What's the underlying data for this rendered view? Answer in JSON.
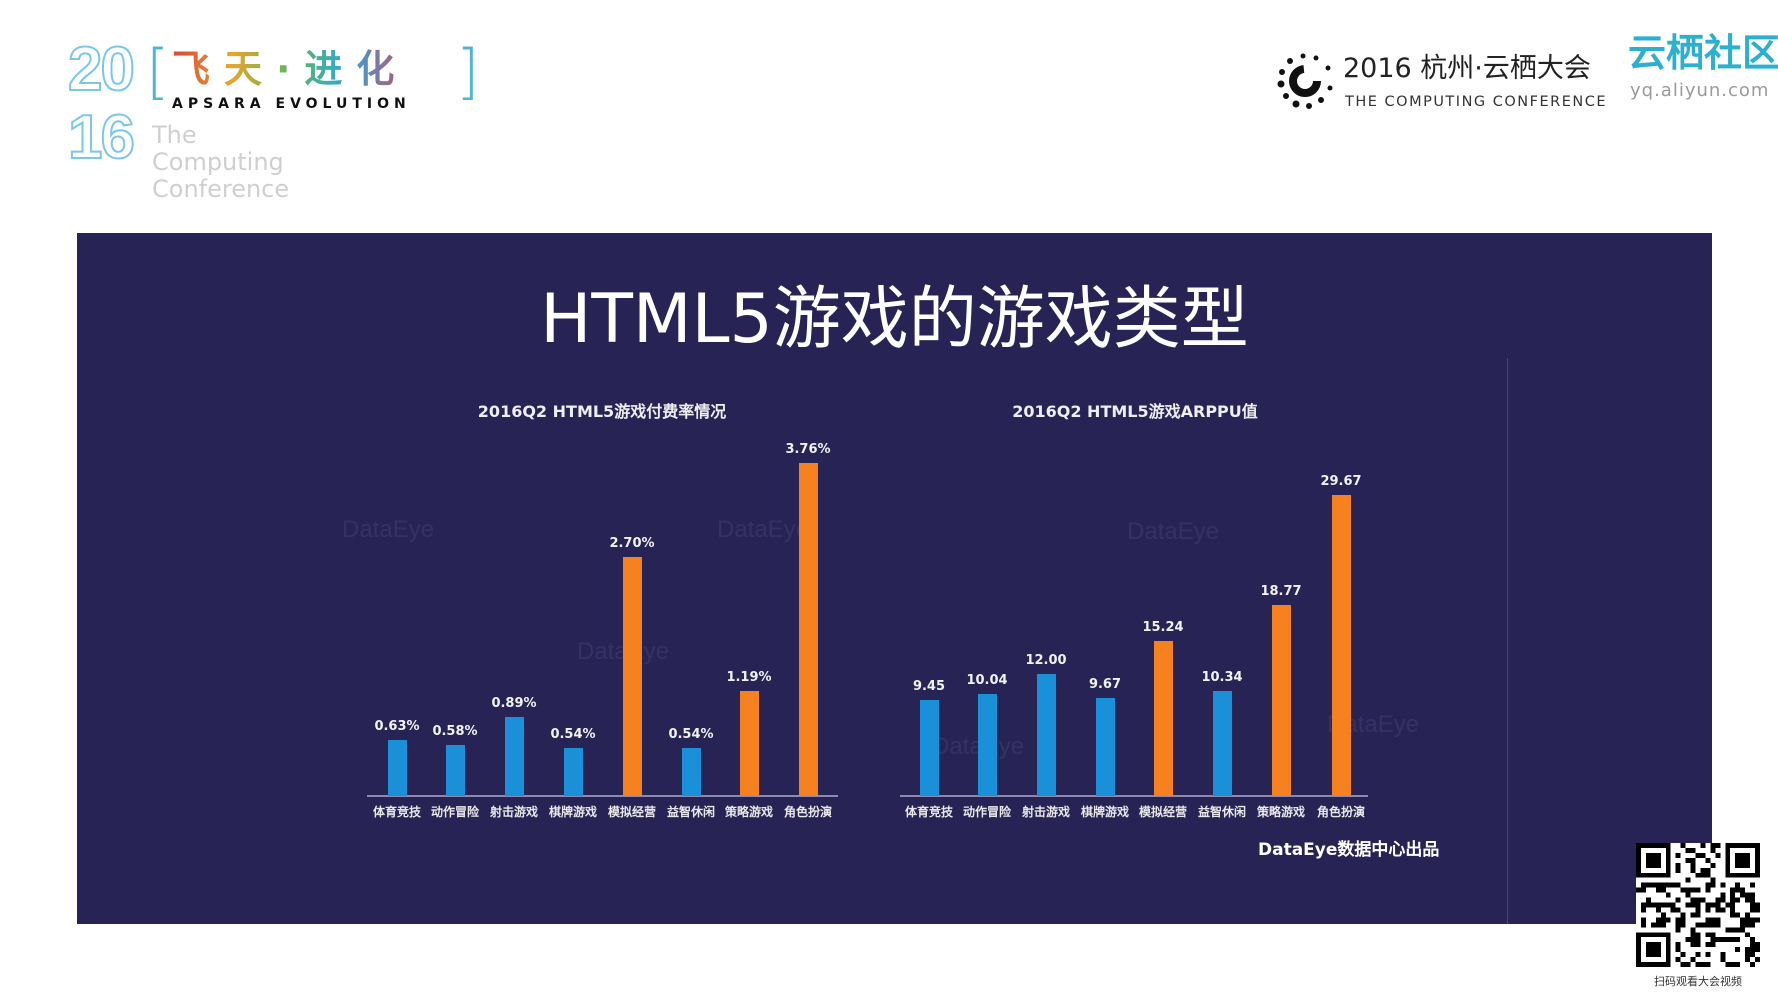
{
  "header": {
    "logo_left": {
      "year_top": "20",
      "year_bottom": "16",
      "tagline": [
        "The",
        "Computing",
        "Conference"
      ],
      "slogan_cn": "飞天·进化",
      "slogan_en": "APSARA EVOLUTION"
    },
    "conference": {
      "title": "2016 杭州·云栖大会",
      "subtitle": "THE COMPUTING CONFERENCE"
    },
    "community": {
      "title": "云栖社区",
      "url": "yq.aliyun.com"
    }
  },
  "slide": {
    "title": "HTML5游戏的游戏类型",
    "footer": "DataEye数据中心出品",
    "watermark": "DataEye"
  },
  "qr": {
    "caption": "扫码观看大会视频"
  },
  "colors": {
    "background": "#272354",
    "blue": "#1a90d8",
    "orange": "#f5821f"
  },
  "chart_data": [
    {
      "type": "bar",
      "title": "2016Q2 HTML5游戏付费率情况",
      "categories": [
        "体育竞技",
        "动作冒险",
        "射击游戏",
        "棋牌游戏",
        "模拟经营",
        "益智休闲",
        "策略游戏",
        "角色扮演"
      ],
      "values": [
        0.63,
        0.58,
        0.89,
        0.54,
        2.7,
        0.54,
        1.19,
        3.76
      ],
      "labels": [
        "0.63%",
        "0.58%",
        "0.89%",
        "0.54%",
        "2.70%",
        "0.54%",
        "1.19%",
        "3.76%"
      ],
      "bar_colors": [
        "blue",
        "blue",
        "blue",
        "blue",
        "orange",
        "blue",
        "orange",
        "orange"
      ],
      "unit": "%",
      "grid": false
    },
    {
      "type": "bar",
      "title": "2016Q2 HTML5游戏ARPPU值",
      "categories": [
        "体育竞技",
        "动作冒险",
        "射击游戏",
        "棋牌游戏",
        "模拟经营",
        "益智休闲",
        "策略游戏",
        "角色扮演"
      ],
      "values": [
        9.45,
        10.04,
        12.0,
        9.67,
        15.24,
        10.34,
        18.77,
        29.67
      ],
      "labels": [
        "9.45",
        "10.04",
        "12.00",
        "9.67",
        "15.24",
        "10.34",
        "18.77",
        "29.67"
      ],
      "bar_colors": [
        "blue",
        "blue",
        "blue",
        "blue",
        "orange",
        "blue",
        "orange",
        "orange"
      ],
      "grid": false
    }
  ]
}
